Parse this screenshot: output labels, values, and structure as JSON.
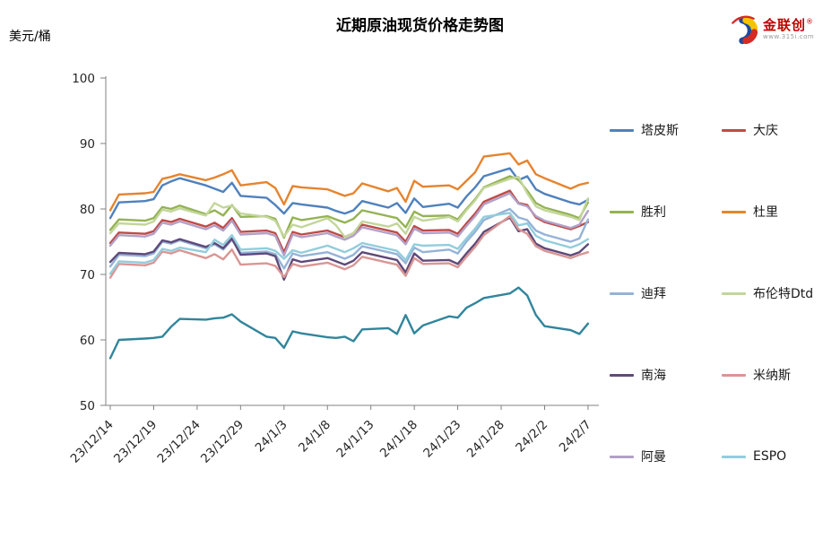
{
  "header": {
    "title": "近期原油现货价格走势图",
    "unit_label": "美元/桶",
    "logo": {
      "brand": "金联创",
      "registered_mark": "®",
      "url_text": "www.315i.com",
      "icon_colors": {
        "blue": "#1c4b9c",
        "yellow": "#f5c400",
        "red": "#d42b22"
      }
    }
  },
  "chart_data": {
    "type": "line",
    "title": "近期原油现货价格走势图",
    "xlabel": "",
    "ylabel": "美元/桶",
    "ylim": [
      50,
      100
    ],
    "y_ticks": [
      100,
      90,
      80,
      70,
      60,
      50
    ],
    "grid": false,
    "legend_position": "right",
    "axis_color": "#808080",
    "x_tick_labels": [
      "23/12/14",
      "23/12/19",
      "23/12/24",
      "23/12/29",
      "24/1/3",
      "24/1/8",
      "24/1/13",
      "24/1/18",
      "24/1/23",
      "24/1/28",
      "24/2/2",
      "24/2/7"
    ],
    "x_tick_day_offsets": [
      0,
      5,
      10,
      15,
      20,
      25,
      30,
      35,
      40,
      45,
      50,
      55
    ],
    "x_day_offsets": [
      0,
      1,
      4,
      5,
      6,
      7,
      8,
      11,
      12,
      13,
      14,
      15,
      18,
      19,
      20,
      21,
      22,
      25,
      26,
      27,
      28,
      29,
      32,
      33,
      34,
      35,
      36,
      39,
      40,
      41,
      42,
      43,
      46,
      47,
      48,
      49,
      50,
      53,
      54,
      55
    ],
    "series": [
      {
        "name": "塔皮斯",
        "color": "#4F81BD",
        "in_legend": true,
        "values": [
          78.6,
          81.0,
          81.2,
          81.5,
          83.6,
          84.2,
          84.7,
          83.6,
          83.1,
          82.6,
          84.0,
          82.0,
          81.7,
          80.6,
          79.3,
          80.9,
          80.7,
          80.2,
          79.7,
          79.3,
          79.8,
          81.2,
          80.2,
          80.9,
          79.4,
          81.6,
          80.3,
          80.8,
          80.2,
          81.9,
          83.3,
          85.0,
          86.2,
          84.4,
          85.0,
          83.0,
          82.3,
          81.0,
          80.7,
          81.4
        ]
      },
      {
        "name": "大庆",
        "color": "#BE4B48",
        "in_legend": true,
        "values": [
          74.8,
          76.4,
          76.2,
          76.6,
          78.3,
          78.0,
          78.5,
          77.3,
          77.9,
          77.1,
          78.6,
          76.5,
          76.7,
          76.3,
          73.4,
          76.5,
          76.1,
          76.7,
          76.2,
          75.7,
          76.3,
          77.6,
          76.7,
          76.4,
          75.0,
          77.4,
          76.7,
          76.8,
          76.2,
          77.8,
          79.3,
          81.1,
          82.8,
          80.9,
          80.6,
          78.7,
          78.0,
          76.9,
          77.4,
          78.0
        ]
      },
      {
        "name": "胜利",
        "color": "#94B353",
        "in_legend": true,
        "values": [
          76.8,
          78.4,
          78.2,
          78.6,
          80.3,
          80.0,
          80.5,
          79.2,
          79.8,
          79.0,
          80.6,
          78.8,
          78.9,
          78.5,
          75.6,
          78.7,
          78.3,
          78.9,
          78.4,
          77.9,
          78.5,
          79.8,
          78.9,
          78.6,
          77.2,
          79.6,
          78.9,
          79.0,
          78.4,
          80.0,
          81.5,
          83.3,
          85.0,
          84.5,
          82.8,
          80.9,
          80.2,
          79.1,
          78.6,
          81.0
        ]
      },
      {
        "name": "杜里",
        "color": "#E6842E",
        "in_legend": true,
        "values": [
          79.8,
          82.2,
          82.4,
          82.6,
          84.6,
          84.9,
          85.3,
          84.4,
          84.8,
          85.3,
          85.9,
          83.6,
          84.1,
          83.2,
          80.7,
          83.5,
          83.3,
          83.0,
          82.5,
          82.0,
          82.4,
          83.9,
          82.7,
          83.2,
          81.1,
          84.3,
          83.4,
          83.6,
          83.0,
          84.3,
          85.6,
          88.0,
          88.5,
          86.8,
          87.4,
          85.3,
          84.7,
          83.1,
          83.7,
          84.0
        ]
      },
      {
        "name": "迪拜",
        "color": "#95B3D7",
        "in_legend": true,
        "values": [
          71.2,
          73.0,
          72.8,
          73.2,
          75.0,
          74.7,
          75.2,
          74.0,
          74.6,
          73.8,
          75.3,
          73.3,
          73.5,
          73.1,
          70.9,
          73.2,
          72.8,
          73.4,
          72.9,
          72.4,
          73.0,
          74.3,
          73.4,
          73.1,
          71.7,
          74.1,
          73.4,
          73.8,
          73.2,
          75.0,
          76.5,
          78.3,
          80.0,
          78.7,
          78.3,
          76.7,
          76.1,
          75.0,
          75.5,
          78.4
        ]
      },
      {
        "name": "布伦特Dtd",
        "color": "#C3D69B",
        "in_legend": true,
        "values": [
          76.3,
          77.8,
          77.6,
          78.1,
          79.9,
          79.6,
          80.1,
          79.0,
          80.9,
          80.2,
          80.5,
          79.3,
          78.8,
          78.2,
          75.8,
          77.6,
          77.2,
          78.6,
          77.5,
          75.7,
          76.3,
          78.1,
          77.3,
          77.8,
          76.2,
          78.8,
          78.2,
          78.8,
          78.1,
          79.8,
          81.3,
          83.2,
          84.6,
          84.9,
          82.4,
          80.4,
          79.8,
          78.8,
          78.3,
          81.6
        ]
      },
      {
        "name": "南海",
        "color": "#5F497A",
        "in_legend": true,
        "values": [
          71.9,
          73.3,
          73.1,
          73.5,
          75.2,
          74.9,
          75.4,
          74.2,
          74.8,
          74.0,
          75.5,
          73.0,
          73.2,
          72.8,
          69.2,
          72.3,
          71.9,
          72.5,
          72.0,
          71.5,
          72.1,
          73.4,
          72.5,
          72.2,
          70.3,
          73.2,
          72.1,
          72.2,
          71.6,
          73.2,
          74.7,
          76.5,
          78.7,
          76.6,
          76.9,
          74.7,
          74.0,
          72.9,
          73.4,
          74.6
        ]
      },
      {
        "name": "米纳斯",
        "color": "#D99694",
        "in_legend": true,
        "values": [
          69.5,
          71.6,
          71.4,
          71.8,
          73.5,
          73.2,
          73.7,
          72.5,
          73.1,
          72.3,
          73.8,
          71.5,
          71.7,
          71.3,
          69.6,
          71.6,
          71.2,
          71.8,
          71.3,
          70.8,
          71.4,
          72.7,
          71.8,
          71.5,
          69.8,
          72.5,
          71.6,
          71.7,
          71.1,
          72.7,
          74.2,
          76.0,
          78.9,
          76.9,
          76.2,
          74.3,
          73.6,
          72.5,
          73.0,
          73.4
        ]
      },
      {
        "name": "阿曼",
        "color": "#B2A1C7",
        "in_legend": true,
        "values": [
          74.4,
          76.0,
          75.8,
          76.2,
          77.9,
          77.6,
          78.1,
          76.9,
          77.5,
          76.7,
          78.2,
          76.1,
          76.3,
          75.9,
          72.9,
          76.1,
          75.7,
          76.3,
          75.8,
          75.3,
          75.9,
          77.2,
          76.3,
          76.0,
          74.6,
          77.0,
          76.3,
          76.4,
          75.8,
          77.4,
          78.9,
          80.7,
          82.4,
          80.8,
          80.4,
          78.9,
          78.2,
          77.1,
          77.6,
          79.7
        ]
      },
      {
        "name": "ESPO",
        "color": "#92CDDC",
        "in_legend": true,
        "values": [
          70.1,
          72.0,
          71.8,
          72.2,
          73.9,
          73.6,
          74.1,
          73.4,
          75.3,
          74.5,
          76.0,
          73.8,
          74.0,
          73.6,
          72.4,
          73.7,
          73.3,
          74.4,
          73.9,
          73.4,
          74.0,
          74.8,
          73.9,
          73.6,
          72.2,
          74.6,
          74.4,
          74.5,
          73.9,
          75.5,
          77.0,
          78.8,
          79.4,
          77.5,
          77.8,
          75.9,
          75.2,
          74.1,
          74.6,
          75.4
        ]
      },
      {
        "name": "",
        "color": "#31859B",
        "in_legend": false,
        "values": [
          57.2,
          60.0,
          60.2,
          60.3,
          60.5,
          62.0,
          63.2,
          63.1,
          63.3,
          63.4,
          63.9,
          62.8,
          60.5,
          60.3,
          58.8,
          61.3,
          61.0,
          60.4,
          60.3,
          60.5,
          59.8,
          61.6,
          61.8,
          60.9,
          63.8,
          61.0,
          62.2,
          63.6,
          63.4,
          64.9,
          65.6,
          66.4,
          67.1,
          68.0,
          66.8,
          63.8,
          62.1,
          61.5,
          60.9,
          62.5
        ]
      }
    ]
  }
}
